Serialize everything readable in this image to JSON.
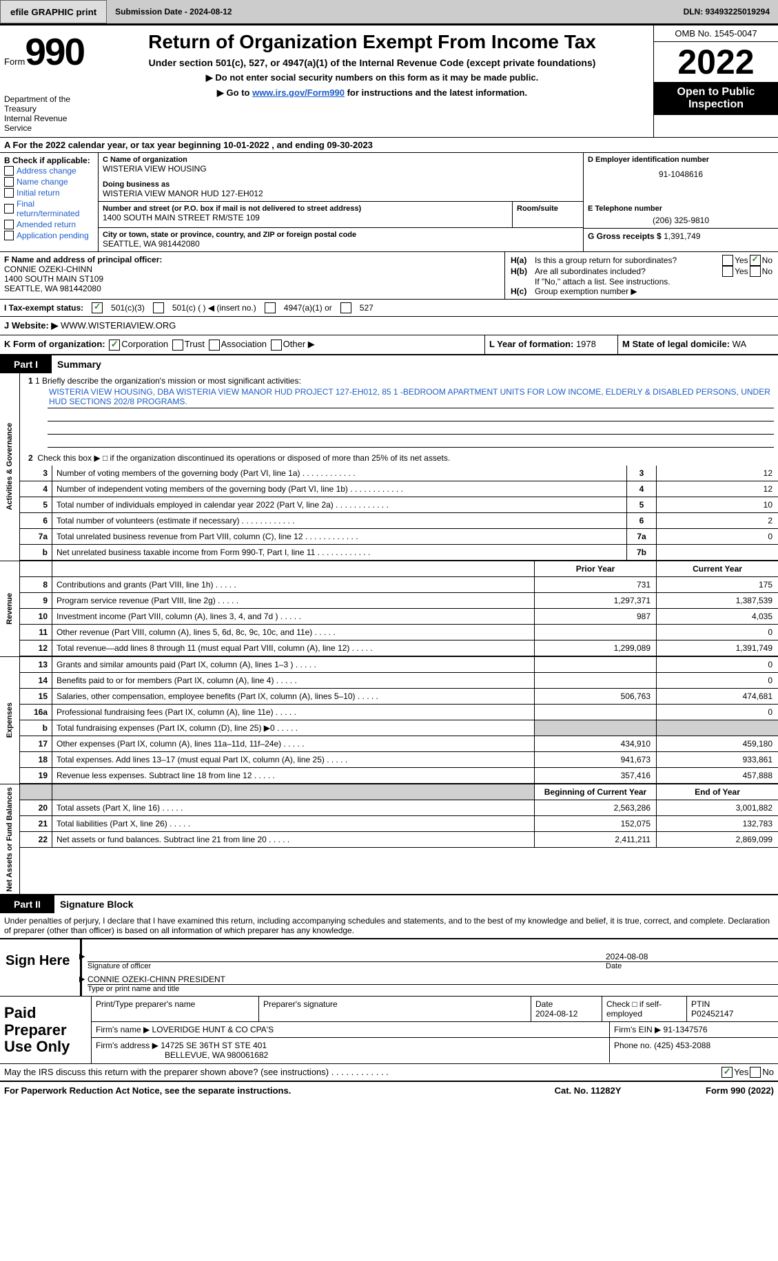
{
  "topbar": {
    "btn1": "efile GRAPHIC print",
    "sub_date_label": "Submission Date - 2024-08-12",
    "dln": "DLN: 93493225019294"
  },
  "header": {
    "form_label": "Form",
    "form_number": "990",
    "title": "Return of Organization Exempt From Income Tax",
    "sub": "Under section 501(c), 527, or 4947(a)(1) of the Internal Revenue Code (except private foundations)",
    "instr1": "▶ Do not enter social security numbers on this form as it may be made public.",
    "instr2_pre": "▶ Go to ",
    "instr2_link": "www.irs.gov/Form990",
    "instr2_post": " for instructions and the latest information.",
    "omb": "OMB No. 1545-0047",
    "year": "2022",
    "otip": "Open to Public Inspection",
    "dept": "Department of the Treasury",
    "irs": "Internal Revenue Service"
  },
  "row_a": "A For the 2022 calendar year, or tax year beginning 10-01-2022    , and ending 09-30-2023",
  "b": {
    "label": "B Check if applicable:",
    "opts": [
      "Address change",
      "Name change",
      "Initial return",
      "Final return/terminated",
      "Amended return",
      "Application pending"
    ]
  },
  "c": {
    "name_label": "C Name of organization",
    "name": "WISTERIA VIEW HOUSING",
    "dba_label": "Doing business as",
    "dba": "WISTERIA VIEW MANOR HUD 127-EH012",
    "addr_label": "Number and street (or P.O. box if mail is not delivered to street address)",
    "addr": "1400 SOUTH MAIN STREET RM/STE 109",
    "room_label": "Room/suite",
    "city_label": "City or town, state or province, country, and ZIP or foreign postal code",
    "city": "SEATTLE, WA  981442080"
  },
  "d": {
    "label": "D Employer identification number",
    "ein": "91-1048616"
  },
  "e": {
    "label": "E Telephone number",
    "value": "(206) 325-9810"
  },
  "g": {
    "label": "G Gross receipts $",
    "value": "1,391,749"
  },
  "f": {
    "label": "F  Name and address of principal officer:",
    "line1": "CONNIE OZEKI-CHINN",
    "line2": "1400 SOUTH MAIN ST109",
    "line3": "SEATTLE, WA  981442080"
  },
  "h": {
    "ha_lbl": "H(a)",
    "ha_text": "Is this a group return for subordinates?",
    "no_checked": true,
    "hb_lbl": "H(b)",
    "hb_text": "Are all subordinates included?",
    "hb_note": "If \"No,\" attach a list. See instructions.",
    "hc_lbl": "H(c)",
    "hc_text": "Group exemption number ▶"
  },
  "i": {
    "label": "I  Tax-exempt status:",
    "o1": "501(c)(3)",
    "o1_checked": true,
    "o2": "501(c) (   ) ◀ (insert no.)",
    "o3": "4947(a)(1) or",
    "o4": "527"
  },
  "j": {
    "label": "J   Website: ▶",
    "url": "WWW.WISTERIAVIEW.ORG"
  },
  "k": {
    "label": "K Form of organization:",
    "o1": "Corporation",
    "o1_checked": true,
    "o2": "Trust",
    "o3": "Association",
    "o4": "Other ▶"
  },
  "l": {
    "label": "L Year of formation:",
    "value": "1978"
  },
  "m": {
    "label": "M State of legal domicile:",
    "value": "WA"
  },
  "part1": {
    "bar": "Part I",
    "title": "Summary"
  },
  "mission": {
    "label": "1  Briefly describe the organization's mission or most significant activities:",
    "text": "WISTERIA VIEW HOUSING, DBA WISTERIA VIEW MANOR HUD PROJECT 127-EH012, 85 1 -BEDROOM APARTMENT UNITS FOR LOW INCOME, ELDERLY & DISABLED PERSONS, UNDER HUD SECTIONS 202/8 PROGRAMS."
  },
  "activities_label": "Activities & Governance",
  "line2": "Check this box ▶ □ if the organization discontinued its operations or disposed of more than 25% of its net assets.",
  "summary_rows": [
    {
      "n": "3",
      "d": "Number of voting members of the governing body (Part VI, line 1a)",
      "b": "3",
      "v": "12"
    },
    {
      "n": "4",
      "d": "Number of independent voting members of the governing body (Part VI, line 1b)",
      "b": "4",
      "v": "12"
    },
    {
      "n": "5",
      "d": "Total number of individuals employed in calendar year 2022 (Part V, line 2a)",
      "b": "5",
      "v": "10"
    },
    {
      "n": "6",
      "d": "Total number of volunteers (estimate if necessary)",
      "b": "6",
      "v": "2"
    },
    {
      "n": "7a",
      "d": "Total unrelated business revenue from Part VIII, column (C), line 12",
      "b": "7a",
      "v": "0"
    },
    {
      "n": "b",
      "d": "Net unrelated business taxable income from Form 990-T, Part I, line 11",
      "b": "7b",
      "v": ""
    }
  ],
  "rev_label": "Revenue",
  "rev_header": {
    "py": "Prior Year",
    "cy": "Current Year"
  },
  "rev_rows": [
    {
      "n": "8",
      "d": "Contributions and grants (Part VIII, line 1h)",
      "py": "731",
      "cy": "175"
    },
    {
      "n": "9",
      "d": "Program service revenue (Part VIII, line 2g)",
      "py": "1,297,371",
      "cy": "1,387,539"
    },
    {
      "n": "10",
      "d": "Investment income (Part VIII, column (A), lines 3, 4, and 7d )",
      "py": "987",
      "cy": "4,035"
    },
    {
      "n": "11",
      "d": "Other revenue (Part VIII, column (A), lines 5, 6d, 8c, 9c, 10c, and 11e)",
      "py": "",
      "cy": "0"
    },
    {
      "n": "12",
      "d": "Total revenue—add lines 8 through 11 (must equal Part VIII, column (A), line 12)",
      "py": "1,299,089",
      "cy": "1,391,749"
    }
  ],
  "exp_label": "Expenses",
  "exp_rows": [
    {
      "n": "13",
      "d": "Grants and similar amounts paid (Part IX, column (A), lines 1–3 )",
      "py": "",
      "cy": "0"
    },
    {
      "n": "14",
      "d": "Benefits paid to or for members (Part IX, column (A), line 4)",
      "py": "",
      "cy": "0"
    },
    {
      "n": "15",
      "d": "Salaries, other compensation, employee benefits (Part IX, column (A), lines 5–10)",
      "py": "506,763",
      "cy": "474,681"
    },
    {
      "n": "16a",
      "d": "Professional fundraising fees (Part IX, column (A), line 11e)",
      "py": "",
      "cy": "0"
    },
    {
      "n": "b",
      "d": "Total fundraising expenses (Part IX, column (D), line 25) ▶0",
      "py": "grey",
      "cy": "grey"
    },
    {
      "n": "17",
      "d": "Other expenses (Part IX, column (A), lines 11a–11d, 11f–24e)",
      "py": "434,910",
      "cy": "459,180"
    },
    {
      "n": "18",
      "d": "Total expenses. Add lines 13–17 (must equal Part IX, column (A), line 25)",
      "py": "941,673",
      "cy": "933,861"
    },
    {
      "n": "19",
      "d": "Revenue less expenses. Subtract line 18 from line 12",
      "py": "357,416",
      "cy": "457,888"
    }
  ],
  "net_label": "Net Assets or Fund Balances",
  "net_header": {
    "py": "Beginning of Current Year",
    "cy": "End of Year"
  },
  "net_rows": [
    {
      "n": "20",
      "d": "Total assets (Part X, line 16)",
      "py": "2,563,286",
      "cy": "3,001,882"
    },
    {
      "n": "21",
      "d": "Total liabilities (Part X, line 26)",
      "py": "152,075",
      "cy": "132,783"
    },
    {
      "n": "22",
      "d": "Net assets or fund balances. Subtract line 21 from line 20",
      "py": "2,411,211",
      "cy": "2,869,099"
    }
  ],
  "part2": {
    "bar": "Part II",
    "title": "Signature Block"
  },
  "penalty": "Under penalties of perjury, I declare that I have examined this return, including accompanying schedules and statements, and to the best of my knowledge and belief, it is true, correct, and complete. Declaration of preparer (other than officer) is based on all information of which preparer has any knowledge.",
  "sign": {
    "here": "Sign Here",
    "sig_label": "Signature of officer",
    "date": "2024-08-08",
    "date_label": "Date",
    "name": "CONNIE OZEKI-CHINN  PRESIDENT",
    "name_label": "Type or print name and title"
  },
  "prep": {
    "label": "Paid Preparer Use Only",
    "r1": {
      "c1": "Print/Type preparer's name",
      "c2": "Preparer's signature",
      "c3": "Date",
      "c3v": "2024-08-12",
      "c4": "Check □ if self-employed",
      "c5": "PTIN",
      "c5v": "P02452147"
    },
    "r2": {
      "label": "Firm's name      ▶",
      "value": "LOVERIDGE HUNT & CO CPA'S",
      "ein_l": "Firm's EIN ▶",
      "ein": "91-1347576"
    },
    "r3": {
      "label": "Firm's address ▶",
      "l1": "14725 SE 36TH ST STE 401",
      "l2": "BELLEVUE, WA  980061682",
      "ph_l": "Phone no.",
      "ph": "(425) 453-2088"
    }
  },
  "discuss": {
    "text": "May the IRS discuss this return with the preparer shown above? (see instructions)",
    "yes_checked": true
  },
  "bottom": {
    "l": "For Paperwork Reduction Act Notice, see the separate instructions.",
    "m": "Cat. No. 11282Y",
    "r": "Form 990 (2022)"
  }
}
